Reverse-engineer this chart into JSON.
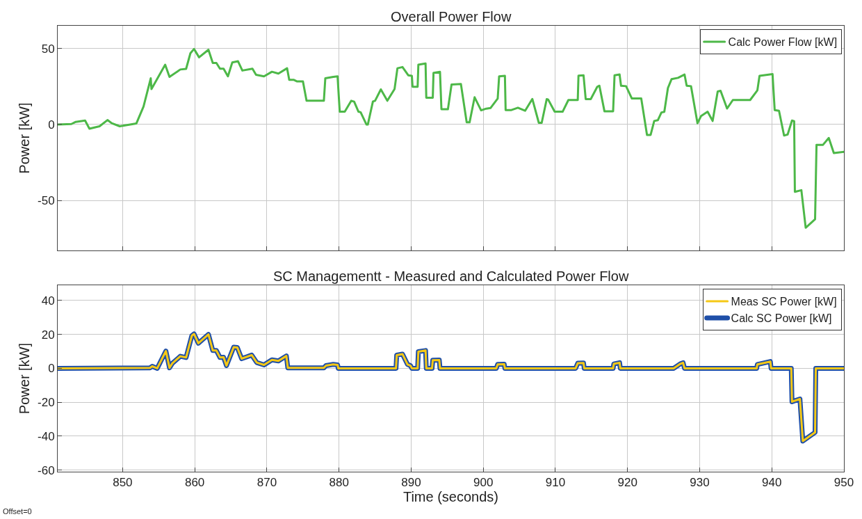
{
  "chart_data": [
    {
      "type": "line",
      "title": "Overall Power Flow",
      "ylabel": "Power [kW]",
      "xlim": [
        841,
        950
      ],
      "xticks": [
        850,
        860,
        870,
        880,
        890,
        900,
        910,
        920,
        930,
        940,
        950
      ],
      "ylim": [
        -83,
        65
      ],
      "yticks": [
        -50,
        0,
        50
      ],
      "grid": true,
      "legend": "top right",
      "tick_labels": "y",
      "series": [
        {
          "name": "Calc Power Flow [kW]",
          "color": "#4db848",
          "x": [
            841,
            842.9,
            843.5,
            844.8,
            845.4,
            846.8,
            847.9,
            848.5,
            849.6,
            851.9,
            852.9,
            853.9,
            854.0,
            855.9,
            856.5,
            858.0,
            858.8,
            859.4,
            859.9,
            860.6,
            861.9,
            862.5,
            863.0,
            863.5,
            864.0,
            864.6,
            865.2,
            866.0,
            866.6,
            868.0,
            868.5,
            869.6,
            870.7,
            871.6,
            872.8,
            873.1,
            873.7,
            874.2,
            875.0,
            875.5,
            877.9,
            878.1,
            879.2,
            879.8,
            880.1,
            880.8,
            881.7,
            882.1,
            882.7,
            883.0,
            883.8,
            884.0,
            884.7,
            885.0,
            885.8,
            886.7,
            887.7,
            888.1,
            888.8,
            889.6,
            890.1,
            890.2,
            890.9,
            891.0,
            892.0,
            892.1,
            893.0,
            893.1,
            894.0,
            894.2,
            895.1,
            895.6,
            896.9,
            897.7,
            898.1,
            898.8,
            899.7,
            900.4,
            901.0,
            902.0,
            902.2,
            903.0,
            903.1,
            903.9,
            904.8,
            905.8,
            906.8,
            907.7,
            908.1,
            908.8,
            909.0,
            909.9,
            911.0,
            911.8,
            913.1,
            913.2,
            913.9,
            914.2,
            914.9,
            915.8,
            916.1,
            916.8,
            918.0,
            918.2,
            918.9,
            919.1,
            919.8,
            920.6,
            921.9,
            922.7,
            923.2,
            923.7,
            924.2,
            924.7,
            925.1,
            925.6,
            926.1,
            927.0,
            927.9,
            928.2,
            928.8,
            929.7,
            930.2,
            931.1,
            931.8,
            932.5,
            932.9,
            933.8,
            934.6,
            937.0,
            938.0,
            938.3,
            940.1,
            940.4,
            941.0,
            941.7,
            942.2,
            942.8,
            943.1,
            943.2,
            944.1,
            944.7,
            946.0,
            946.2,
            947.1,
            947.9,
            948.6,
            950
          ],
          "values": [
            0,
            0.3,
            1.7,
            2.6,
            -2.8,
            -1.2,
            2.9,
            0.8,
            -1.2,
            0.6,
            11.8,
            30.4,
            23.3,
            39.3,
            31.3,
            36.2,
            36.6,
            46.9,
            49.7,
            44.2,
            49.2,
            40.5,
            40.5,
            36.7,
            36.7,
            31.7,
            40.8,
            41.6,
            35.5,
            36.7,
            32.7,
            31.7,
            34.7,
            33.5,
            37.0,
            29.4,
            29.4,
            28.3,
            28.3,
            15.6,
            15.6,
            30.4,
            31.3,
            31.7,
            8.4,
            8.4,
            15.6,
            15.0,
            8.4,
            8.0,
            0,
            0,
            15.1,
            15.6,
            23.1,
            15.6,
            23.3,
            37.0,
            37.8,
            32.4,
            32.0,
            24.8,
            24.8,
            39.3,
            40.1,
            17.6,
            17.6,
            34.0,
            34.6,
            10.0,
            10.0,
            26.3,
            26.6,
            1.4,
            1.4,
            17.9,
            9.3,
            10.4,
            10.8,
            17.1,
            31.7,
            32.0,
            9.5,
            9.5,
            11.0,
            9.0,
            16.8,
            1.1,
            1.1,
            16.7,
            16.4,
            8.4,
            8.4,
            16.1,
            16.1,
            32.1,
            32.4,
            16.7,
            16.7,
            24.8,
            25.5,
            8.7,
            8.7,
            32.4,
            32.9,
            25.5,
            25.2,
            17.1,
            17.1,
            -6.9,
            -6.9,
            2.3,
            2.8,
            7.9,
            8.3,
            24.0,
            29.8,
            30.7,
            32.9,
            25.5,
            25.2,
            0.8,
            5.6,
            8.4,
            2.3,
            21.7,
            22.2,
            10.5,
            16.1,
            16.1,
            22.5,
            32.0,
            33.2,
            9.5,
            9.0,
            -7.3,
            -6.6,
            2.6,
            2.2,
            -44.4,
            -43.3,
            -68,
            -62.4,
            -13.4,
            -13.4,
            -8.9,
            -18.8,
            -18
          ]
        }
      ]
    },
    {
      "type": "line",
      "title": "SC Managementt - Measured and Calculated Power Flow",
      "xlabel": "Time (seconds)",
      "ylabel": "Power [kW]",
      "xlim": [
        841,
        950
      ],
      "xticks": [
        850,
        860,
        870,
        880,
        890,
        900,
        910,
        920,
        930,
        940,
        950
      ],
      "ylim": [
        -61,
        49
      ],
      "yticks": [
        -60,
        -40,
        -20,
        0,
        20,
        40
      ],
      "grid": true,
      "legend": "top right",
      "annotations": [
        "Offset=0"
      ],
      "x": [
        841,
        853.8,
        854.1,
        854.8,
        856.0,
        856.5,
        856.9,
        858.0,
        858.8,
        859.6,
        859.9,
        860.5,
        861.9,
        862.5,
        863.0,
        863.5,
        864.0,
        864.4,
        865.4,
        865.9,
        866.5,
        867.9,
        868.6,
        869.6,
        870.7,
        871.6,
        872.7,
        872.9,
        877.9,
        878.2,
        879.2,
        879.8,
        879.9,
        887.9,
        888.0,
        888.8,
        889.5,
        889.9,
        890.1,
        890.9,
        891.0,
        892.0,
        892.1,
        892.9,
        893.0,
        893.9,
        894.0,
        901.8,
        902.0,
        902.9,
        903.0,
        912.8,
        913.1,
        913.9,
        914.0,
        918.0,
        918.1,
        918.9,
        919.0,
        926.4,
        927.3,
        927.7,
        927.9,
        937.9,
        938.0,
        939.8,
        939.9,
        942.7,
        942.8,
        943.9,
        944.3,
        946.0,
        946.1,
        950
      ],
      "series": [
        {
          "name": "Meas SC Power [kW]",
          "color": "#f5c816",
          "values": [
            0,
            0.3,
            1.2,
            0,
            10.2,
            0.3,
            3,
            7.1,
            6.4,
            19.3,
            20.3,
            14.8,
            20,
            10.5,
            10.5,
            6.4,
            6.5,
            1.6,
            12.5,
            12.3,
            5.7,
            7.8,
            3.4,
            2,
            5,
            4.4,
            7.3,
            0.3,
            0.3,
            1.6,
            2.3,
            2,
            0,
            0,
            7.8,
            8.4,
            2.3,
            1.6,
            0,
            0,
            9.8,
            10.5,
            0,
            0,
            4.8,
            4.9,
            0,
            0,
            2.3,
            2.4,
            0,
            0,
            3,
            3.1,
            0,
            0,
            2.6,
            3.3,
            0,
            0,
            2.6,
            3.3,
            0,
            0,
            2.3,
            4,
            0,
            0,
            -19.7,
            -18.1,
            -42.9,
            -37.8,
            0,
            0
          ]
        },
        {
          "name": "Calc SC Power [kW]",
          "color": "#1f4fa8",
          "values": [
            0,
            0.3,
            1.2,
            0,
            10.2,
            0.3,
            3,
            7.1,
            6.4,
            19.3,
            20.3,
            14.8,
            20,
            10.5,
            10.5,
            6.4,
            6.5,
            1.6,
            12.5,
            12.3,
            5.7,
            7.8,
            3.4,
            2,
            5,
            4.4,
            7.3,
            0.3,
            0.3,
            1.6,
            2.3,
            2,
            0,
            0,
            7.8,
            8.4,
            2.3,
            1.6,
            0,
            0,
            9.8,
            10.5,
            0,
            0,
            4.8,
            4.9,
            0,
            0,
            2.3,
            2.4,
            0,
            0,
            3,
            3.1,
            0,
            0,
            2.6,
            3.3,
            0,
            0,
            2.6,
            3.3,
            0,
            0,
            2.3,
            4,
            0,
            0,
            -19.7,
            -18.1,
            -42.9,
            -37.8,
            0,
            0
          ]
        }
      ]
    }
  ]
}
